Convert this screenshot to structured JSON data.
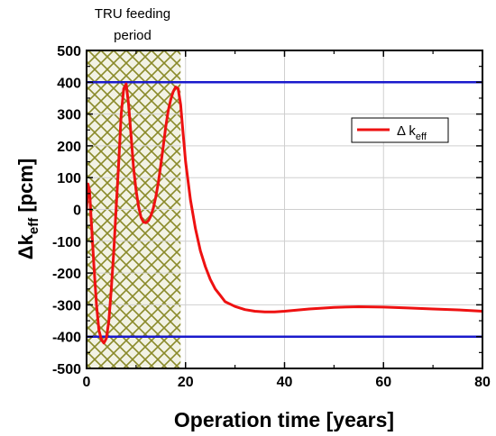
{
  "chart_data": {
    "type": "line",
    "title": "",
    "xlabel": "Operation time [years]",
    "ylabel": {
      "main": "Δk",
      "sub": "eff",
      "unit": " [pcm]"
    },
    "xlim": [
      0,
      80
    ],
    "ylim": [
      -500,
      500
    ],
    "xticks": [
      0,
      20,
      40,
      60,
      80
    ],
    "yticks": [
      500,
      400,
      300,
      200,
      100,
      0,
      -100,
      -200,
      -300,
      -400,
      -500
    ],
    "grid": true,
    "annotation": {
      "line1": "TRU feeding",
      "line2": "period"
    },
    "feeding_period": [
      0,
      19
    ],
    "limit_lines": [
      400,
      -400
    ],
    "legend": {
      "main": "Δ k",
      "sub": "eff",
      "position": "right"
    },
    "colors": {
      "series": "#ee1111",
      "limits": "#1a1acc",
      "hatch": "#8a8a2a",
      "hatch_fill": "#f2f2e4"
    },
    "series": [
      {
        "name": "Δ keff",
        "x": [
          0,
          0.3,
          0.6,
          1.0,
          1.5,
          2.0,
          2.5,
          3.0,
          3.5,
          4.0,
          4.5,
          5.0,
          5.5,
          6.0,
          6.5,
          7.0,
          7.5,
          8.0,
          8.5,
          9.0,
          9.5,
          10,
          10.5,
          11,
          11.5,
          12,
          12.5,
          13,
          13.5,
          14,
          14.5,
          15,
          15.5,
          16,
          16.5,
          17,
          17.5,
          18,
          18.5,
          19,
          19.5,
          20,
          21,
          22,
          23,
          24,
          25,
          26,
          27,
          28,
          30,
          32,
          34,
          36,
          38,
          40,
          45,
          50,
          55,
          60,
          65,
          70,
          75,
          80
        ],
        "y": [
          0,
          80,
          60,
          -50,
          -180,
          -300,
          -380,
          -410,
          -420,
          -405,
          -350,
          -250,
          -130,
          10,
          150,
          300,
          380,
          395,
          330,
          230,
          130,
          60,
          10,
          -25,
          -40,
          -42,
          -35,
          -20,
          5,
          40,
          85,
          140,
          200,
          260,
          310,
          345,
          370,
          385,
          380,
          330,
          240,
          150,
          30,
          -60,
          -130,
          -180,
          -220,
          -250,
          -270,
          -290,
          -305,
          -315,
          -320,
          -322,
          -322,
          -320,
          -313,
          -308,
          -306,
          -307,
          -310,
          -313,
          -316,
          -320
        ]
      }
    ]
  }
}
